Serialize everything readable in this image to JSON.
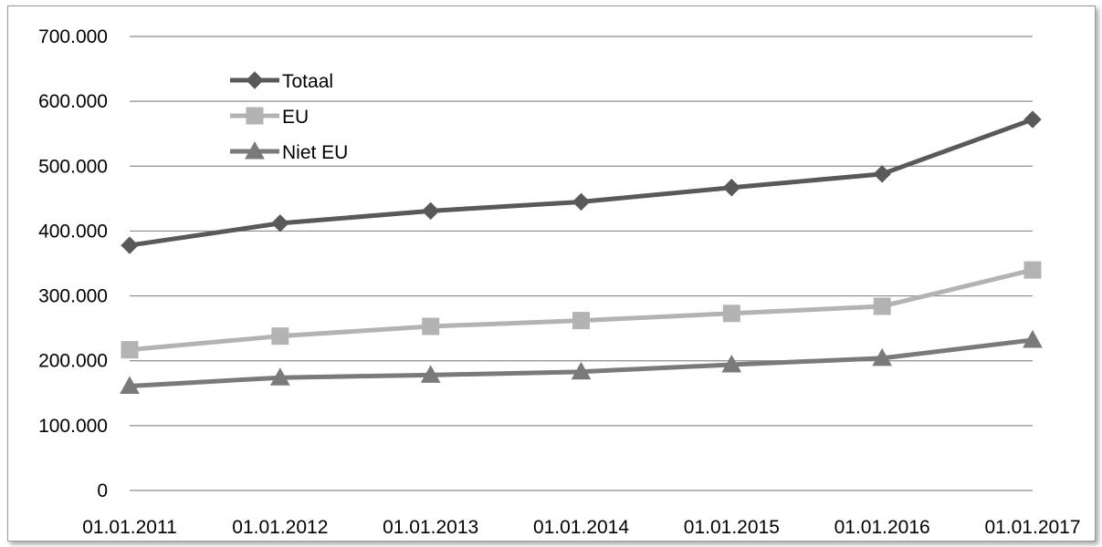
{
  "chart_data": {
    "type": "line",
    "title": "",
    "xlabel": "",
    "ylabel": "",
    "categories": [
      "01.01.2011",
      "01.01.2012",
      "01.01.2013",
      "01.01.2014",
      "01.01.2015",
      "01.01.2016",
      "01.01.2017"
    ],
    "ylim": [
      0,
      700000
    ],
    "yticks": [
      0,
      100000,
      200000,
      300000,
      400000,
      500000,
      600000,
      700000
    ],
    "ytick_labels": [
      "0",
      "100.000",
      "200.000",
      "300.000",
      "400.000",
      "500.000",
      "600.000",
      "700.000"
    ],
    "grid": true,
    "legend_position": "top-left",
    "series": [
      {
        "name": "Totaal",
        "marker": "diamond",
        "color": "#595959",
        "values": [
          378000,
          412000,
          431000,
          445000,
          467000,
          488000,
          572000
        ]
      },
      {
        "name": "EU",
        "marker": "square",
        "color": "#b3b3b3",
        "values": [
          217000,
          238000,
          253000,
          262000,
          273000,
          284000,
          340000
        ]
      },
      {
        "name": "Niet EU",
        "marker": "triangle",
        "color": "#7a7a7a",
        "values": [
          161000,
          174000,
          178000,
          183000,
          194000,
          204000,
          232000
        ]
      }
    ]
  }
}
